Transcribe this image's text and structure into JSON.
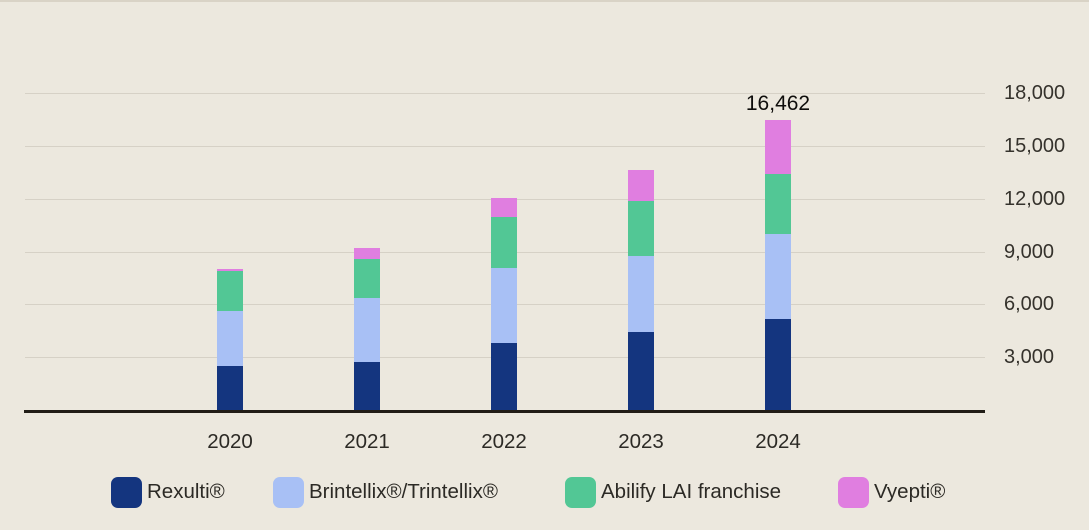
{
  "chart_data": {
    "type": "bar",
    "stacked": true,
    "title": "",
    "xlabel": "",
    "ylabel": "",
    "categories": [
      "2020",
      "2021",
      "2022",
      "2023",
      "2024"
    ],
    "series": [
      {
        "name": "Rexulti®",
        "color": "#14357f",
        "values": [
          2510,
          2700,
          3830,
          4440,
          5150
        ]
      },
      {
        "name": "Brintellix®/Trintellix®",
        "color": "#a8c0f5",
        "values": [
          3110,
          3680,
          4240,
          4320,
          4850
        ]
      },
      {
        "name": "Abilify LAI franchise",
        "color": "#52c795",
        "values": [
          2250,
          2190,
          2910,
          3130,
          3410
        ]
      },
      {
        "name": "Vyepti®",
        "color": "#e07ee0",
        "values": [
          130,
          620,
          1080,
          1710,
          3052
        ]
      }
    ],
    "totals": [
      8000,
      9190,
      12060,
      13600,
      16462
    ],
    "data_label": {
      "category": "2024",
      "text": "16,462",
      "value": 16462
    },
    "ylim": [
      0,
      18000
    ],
    "yticks": [
      3000,
      6000,
      9000,
      12000,
      15000,
      18000
    ],
    "ytick_labels": [
      "3,000",
      "6,000",
      "9,000",
      "12,000",
      "15,000",
      "18,000"
    ],
    "ytick_side": "right",
    "grid": true,
    "legend_position": "bottom"
  },
  "colors": {
    "background": "#ece8de",
    "gridline": "#d6d1c6",
    "axis": "#211d16",
    "label_text": "#2c2a25",
    "tick_text": "#35322c"
  }
}
